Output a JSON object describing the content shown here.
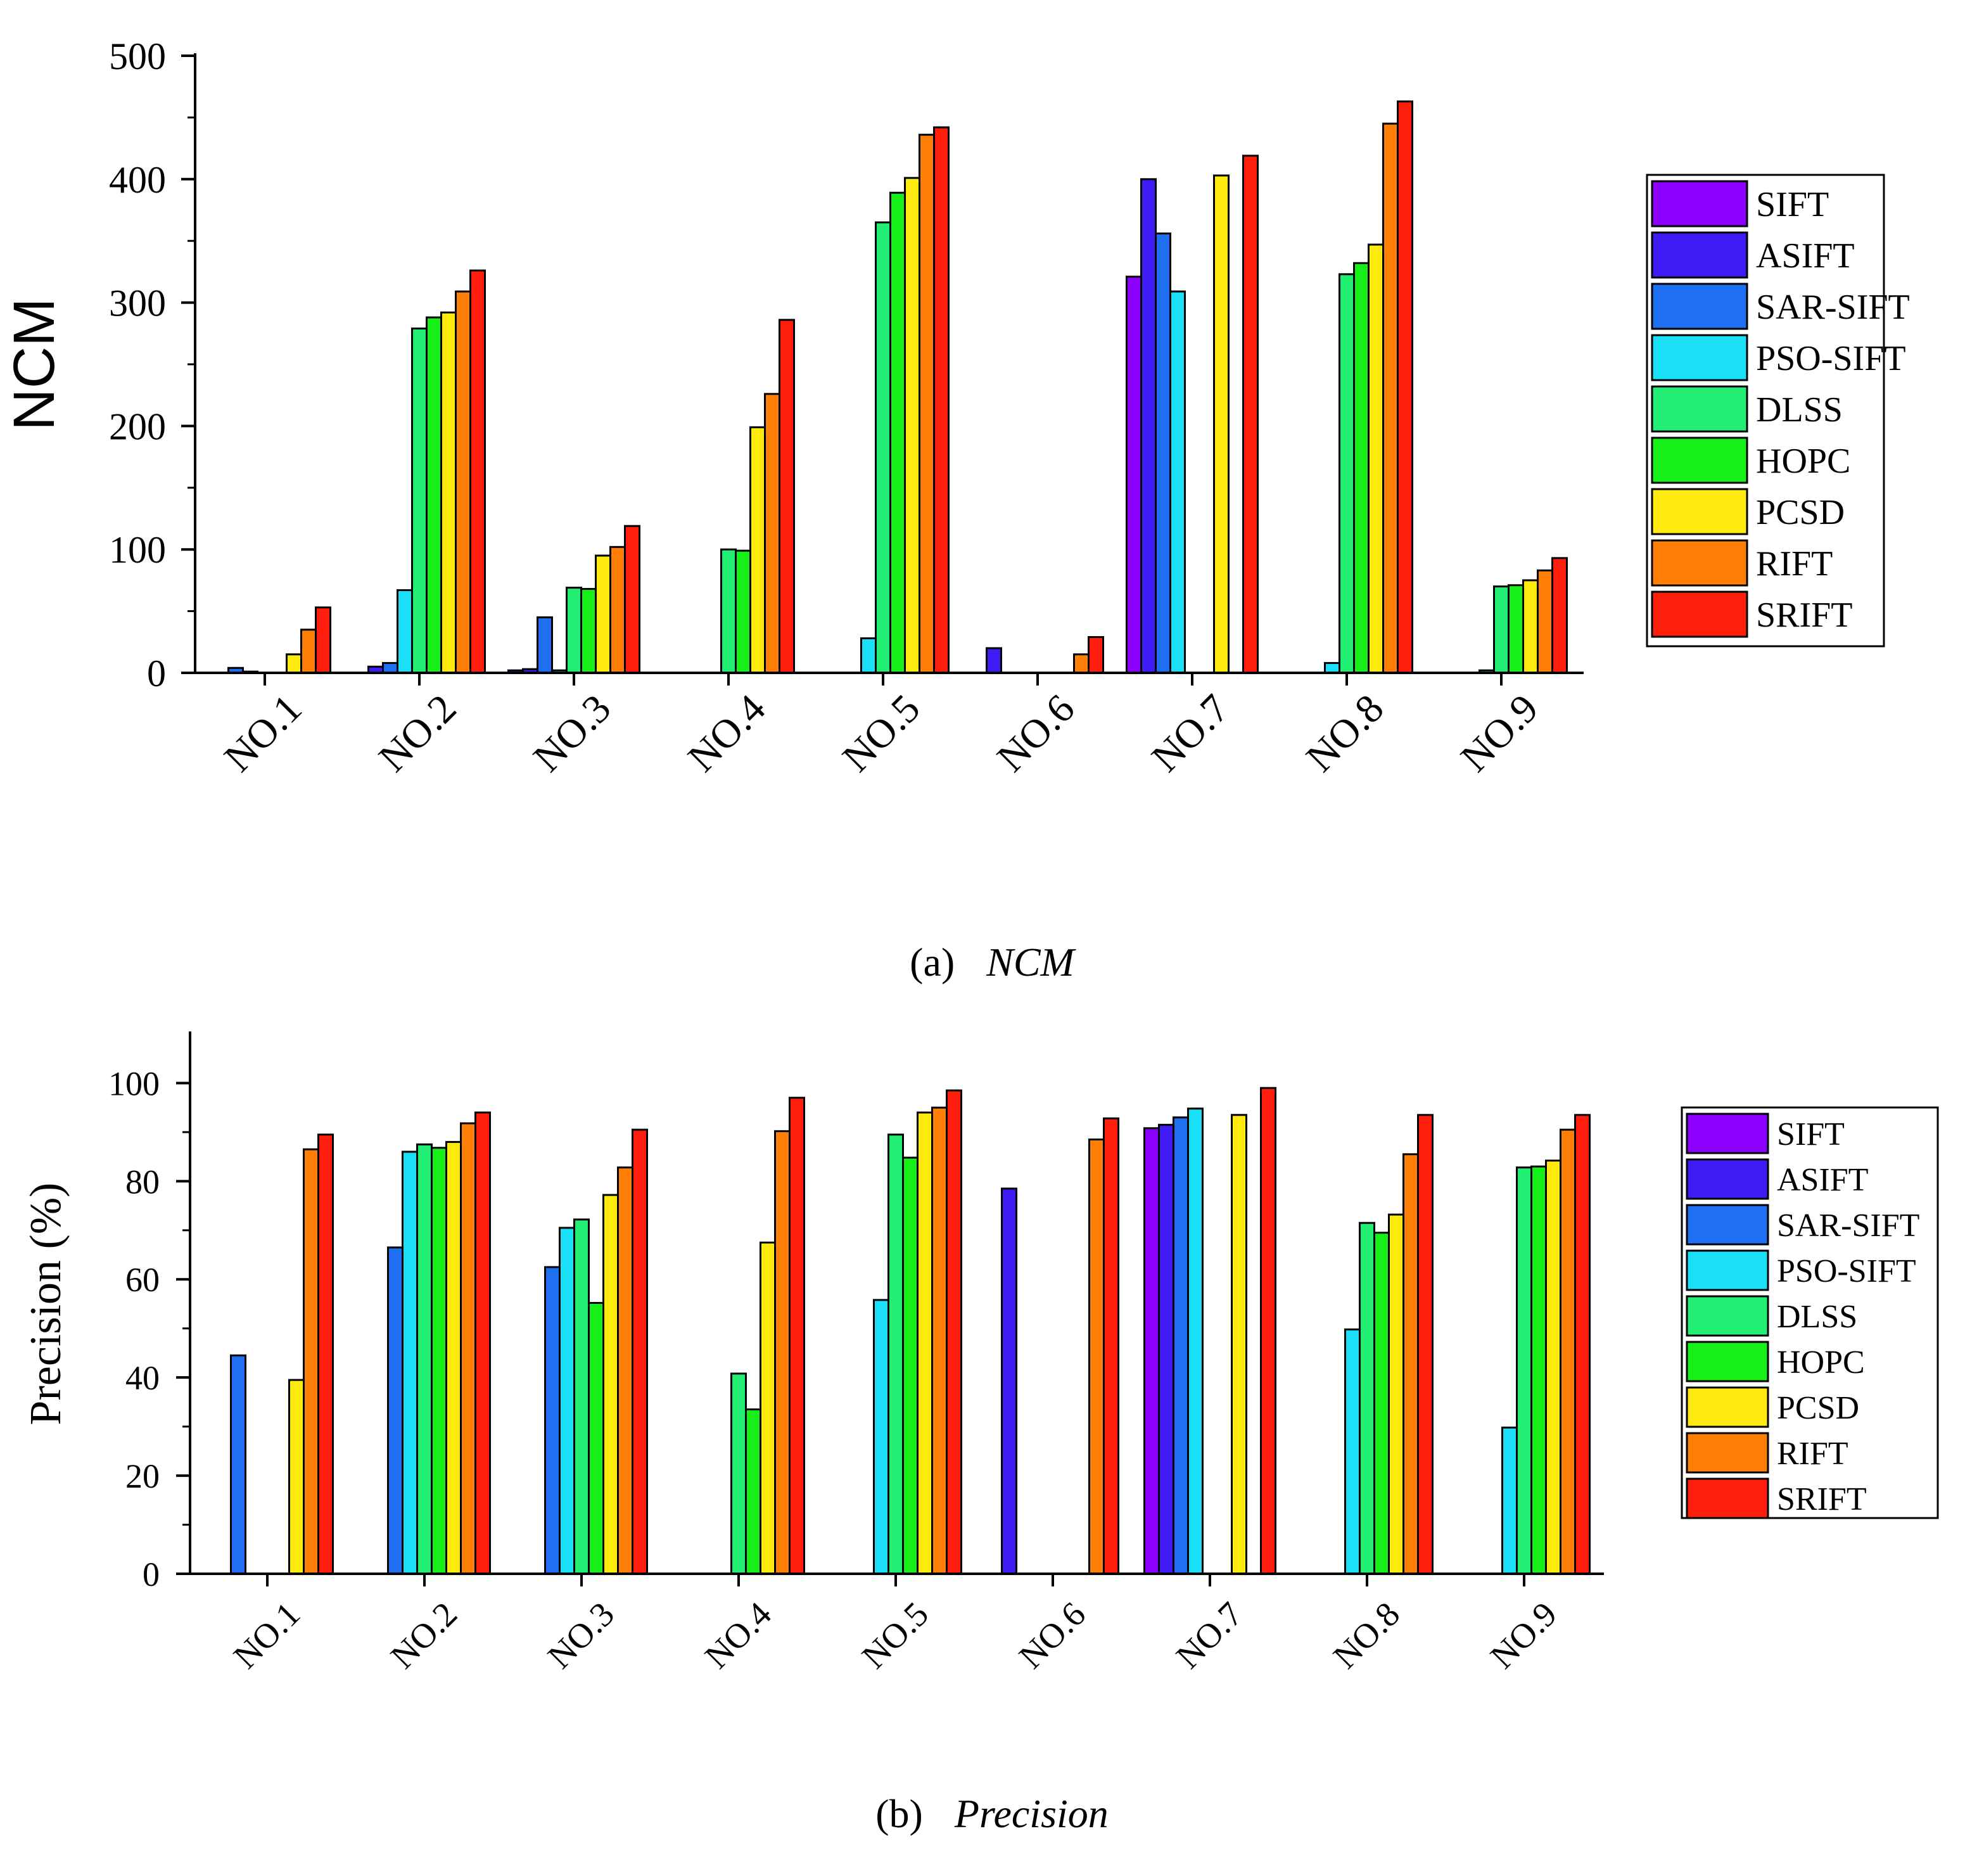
{
  "chart_data": [
    {
      "id": "ncm",
      "type": "bar",
      "title": "",
      "xlabel": "",
      "ylabel": "NCM",
      "ylim": [
        0,
        500
      ],
      "yticks": [
        "0",
        "100",
        "200",
        "300",
        "400",
        "500"
      ],
      "categories": [
        "NO.1",
        "NO.2",
        "NO.3",
        "NO.4",
        "NO.5",
        "NO.6",
        "NO.7",
        "NO.8",
        "NO.9"
      ],
      "legend_position": "right",
      "caption_label": "(a)",
      "caption_text": "NCM",
      "series": [
        {
          "name": "SIFT",
          "color": "#8B00FF",
          "values": [
            0,
            0,
            2,
            0,
            0,
            0,
            321,
            0,
            0
          ]
        },
        {
          "name": "ASIFT",
          "color": "#3F1BF5",
          "values": [
            0,
            5,
            3,
            0,
            0,
            20,
            400,
            0,
            0
          ]
        },
        {
          "name": "SAR-SIFT",
          "color": "#1E6FF2",
          "values": [
            4,
            8,
            45,
            0,
            0,
            0,
            356,
            0,
            0
          ]
        },
        {
          "name": "PSO-SIFT",
          "color": "#19E0F7",
          "values": [
            1,
            67,
            2,
            0,
            28,
            0,
            309,
            8,
            2
          ]
        },
        {
          "name": "DLSS",
          "color": "#21EE73",
          "values": [
            0,
            279,
            69,
            100,
            365,
            0,
            0,
            323,
            70
          ]
        },
        {
          "name": "HOPC",
          "color": "#17EF19",
          "values": [
            0,
            288,
            68,
            99,
            389,
            0,
            0,
            332,
            71
          ]
        },
        {
          "name": "PCSD",
          "color": "#FFEA10",
          "values": [
            15,
            292,
            95,
            199,
            401,
            0,
            403,
            347,
            75
          ]
        },
        {
          "name": "RIFT",
          "color": "#FF7E06",
          "values": [
            35,
            309,
            102,
            226,
            436,
            15,
            0,
            445,
            83
          ]
        },
        {
          "name": "SRIFT",
          "color": "#FF1E0B",
          "values": [
            53,
            326,
            119,
            286,
            442,
            29,
            419,
            463,
            93
          ]
        }
      ]
    },
    {
      "id": "precision",
      "type": "bar",
      "title": "",
      "xlabel": "",
      "ylabel": "Precision (%)",
      "ylim": [
        0,
        110
      ],
      "yticks": [
        "0",
        "20",
        "40",
        "60",
        "80",
        "100"
      ],
      "categories": [
        "NO.1",
        "NO.2",
        "NO.3",
        "NO.4",
        "NO.5",
        "NO.6",
        "NO.7",
        "NO.8",
        "NO.9"
      ],
      "legend_position": "right",
      "caption_label": "(b)",
      "caption_text": "Precision",
      "series": [
        {
          "name": "SIFT",
          "color": "#8B00FF",
          "values": [
            0,
            0,
            0,
            0,
            0,
            0,
            90.8,
            0,
            0
          ]
        },
        {
          "name": "ASIFT",
          "color": "#3F1BF5",
          "values": [
            0,
            0,
            0,
            0,
            0,
            78.5,
            91.5,
            0,
            0
          ]
        },
        {
          "name": "SAR-SIFT",
          "color": "#1E6FF2",
          "values": [
            44.5,
            66.5,
            62.5,
            0,
            0,
            0,
            93,
            0,
            0
          ]
        },
        {
          "name": "PSO-SIFT",
          "color": "#19E0F7",
          "values": [
            0,
            86,
            70.5,
            0,
            55.8,
            0,
            94.8,
            49.8,
            29.8
          ]
        },
        {
          "name": "DLSS",
          "color": "#21EE73",
          "values": [
            0,
            87.5,
            72.2,
            40.8,
            89.5,
            0,
            0,
            71.5,
            82.8
          ]
        },
        {
          "name": "HOPC",
          "color": "#17EF19",
          "values": [
            0,
            86.8,
            55.2,
            33.5,
            84.8,
            0,
            0,
            69.5,
            83
          ]
        },
        {
          "name": "PCSD",
          "color": "#FFEA10",
          "values": [
            39.5,
            88,
            77.2,
            67.5,
            94,
            0,
            93.5,
            73.2,
            84.2
          ]
        },
        {
          "name": "RIFT",
          "color": "#FF7E06",
          "values": [
            86.5,
            91.8,
            82.8,
            90.2,
            95,
            88.5,
            0,
            85.5,
            90.5
          ]
        },
        {
          "name": "SRIFT",
          "color": "#FF1E0B",
          "values": [
            89.5,
            94,
            90.5,
            97,
            98.5,
            92.8,
            99,
            93.5,
            93.5
          ]
        }
      ]
    }
  ]
}
